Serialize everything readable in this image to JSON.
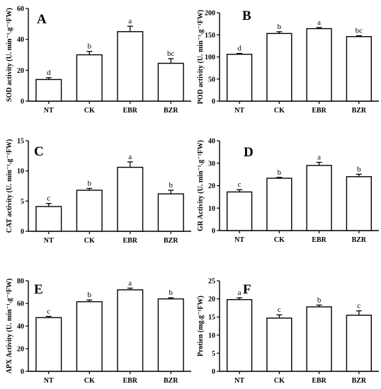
{
  "chart_data": [
    {
      "type": "bar",
      "panel_label": "A",
      "ylabel": "SOD activity (U. min⁻¹.g⁻¹FW)",
      "categories": [
        "NT",
        "CK",
        "EBR",
        "BZR"
      ],
      "values": [
        14,
        30,
        45,
        24.5
      ],
      "errors": [
        1.2,
        2.2,
        3.5,
        3
      ],
      "significance": [
        "d",
        "b",
        "a",
        "bc"
      ],
      "ylim": [
        0,
        60
      ],
      "yticks": [
        0,
        20,
        40,
        60
      ]
    },
    {
      "type": "bar",
      "panel_label": "B",
      "ylabel": "POD activity (U. min⁻¹.g⁻¹FW)",
      "categories": [
        "NT",
        "CK",
        "EBR",
        "BZR"
      ],
      "values": [
        106,
        153,
        164,
        146
      ],
      "errors": [
        2,
        4,
        2.5,
        2
      ],
      "significance": [
        "d",
        "b",
        "a",
        "bc"
      ],
      "ylim": [
        0,
        200
      ],
      "yticks": [
        0,
        50,
        100,
        150,
        200
      ]
    },
    {
      "type": "bar",
      "panel_label": "C",
      "ylabel": "CAT activity (U. min⁻¹.g⁻¹FW)",
      "categories": [
        "NT",
        "CK",
        "EBR",
        "BZR"
      ],
      "values": [
        4.1,
        6.8,
        10.6,
        6.2
      ],
      "errors": [
        0.5,
        0.3,
        0.9,
        0.6
      ],
      "significance": [
        "c",
        "b",
        "a",
        "b"
      ],
      "ylim": [
        0,
        15
      ],
      "yticks": [
        0,
        5,
        10,
        15
      ]
    },
    {
      "type": "bar",
      "panel_label": "D",
      "ylabel": "GR Activity (U. min⁻¹.g⁻¹FW)",
      "categories": [
        "NT",
        "CK",
        "EBR",
        "BZR"
      ],
      "values": [
        17.2,
        23.3,
        29,
        24
      ],
      "errors": [
        1,
        0.4,
        1.4,
        1.1
      ],
      "significance": [
        "c",
        "b",
        "a",
        "b"
      ],
      "ylim": [
        0,
        40
      ],
      "yticks": [
        0,
        10,
        20,
        30,
        40
      ]
    },
    {
      "type": "bar",
      "panel_label": "E",
      "ylabel": "APX Activity (U. min⁻¹.g⁻¹FW)",
      "categories": [
        "NT",
        "CK",
        "EBR",
        "BZR"
      ],
      "values": [
        47.5,
        61.5,
        72,
        64
      ],
      "errors": [
        1,
        1.5,
        1.5,
        1
      ],
      "significance": [
        "c",
        "b",
        "a",
        "b"
      ],
      "ylim": [
        0,
        80
      ],
      "yticks": [
        0,
        20,
        40,
        60,
        80
      ]
    },
    {
      "type": "bar",
      "panel_label": "F",
      "ylabel": "Protien (mg.g⁻¹FW)",
      "categories": [
        "NT",
        "CK",
        "EBR",
        "BZR"
      ],
      "values": [
        19.8,
        14.7,
        17.8,
        15.5
      ],
      "errors": [
        0.5,
        0.9,
        0.5,
        1.2
      ],
      "significance": [
        "a",
        "c",
        "b",
        "c"
      ],
      "ylim": [
        0,
        25
      ],
      "yticks": [
        0,
        5,
        10,
        15,
        20,
        25
      ]
    }
  ]
}
